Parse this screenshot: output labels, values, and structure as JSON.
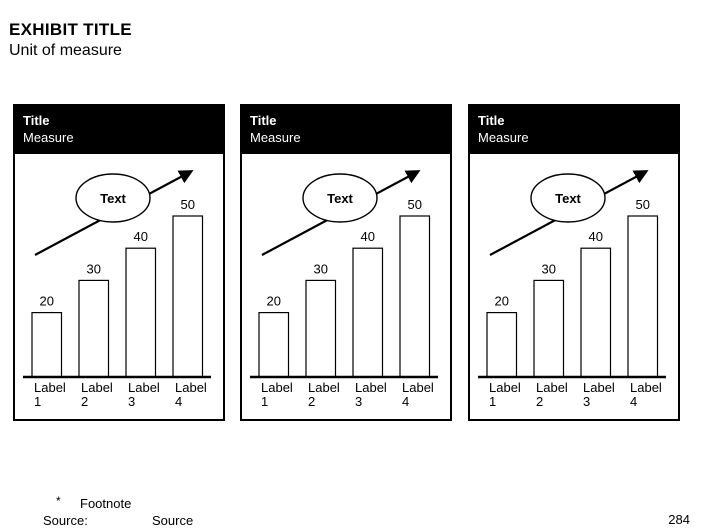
{
  "header": {
    "exhibit_title": "EXHIBIT TITLE",
    "unit_of_measure": "Unit of measure"
  },
  "panels": [
    {
      "title": "Title",
      "measure": "Measure"
    },
    {
      "title": "Title",
      "measure": "Measure"
    },
    {
      "title": "Title",
      "measure": "Measure"
    }
  ],
  "chart_data": [
    {
      "type": "bar",
      "title": "Title",
      "ylabel": "Measure",
      "categories": [
        "Label 1",
        "Label 2",
        "Label 3",
        "Label 4"
      ],
      "values": [
        20,
        30,
        40,
        50
      ],
      "data_labels": [
        "20",
        "30",
        "40",
        "50"
      ],
      "annotation": "Text",
      "has_trend_arrow": true,
      "ylim": [
        0,
        55
      ],
      "grid": false,
      "colors": {
        "bar_fill": "#ffffff",
        "bar_stroke": "#000000",
        "arrow": "#000000"
      }
    },
    {
      "type": "bar",
      "title": "Title",
      "ylabel": "Measure",
      "categories": [
        "Label 1",
        "Label 2",
        "Label 3",
        "Label 4"
      ],
      "values": [
        20,
        30,
        40,
        50
      ],
      "data_labels": [
        "20",
        "30",
        "40",
        "50"
      ],
      "annotation": "Text",
      "has_trend_arrow": true,
      "ylim": [
        0,
        55
      ],
      "grid": false,
      "colors": {
        "bar_fill": "#ffffff",
        "bar_stroke": "#000000",
        "arrow": "#000000"
      }
    },
    {
      "type": "bar",
      "title": "Title",
      "ylabel": "Measure",
      "categories": [
        "Label 1",
        "Label 2",
        "Label 3",
        "Label 4"
      ],
      "values": [
        20,
        30,
        40,
        50
      ],
      "data_labels": [
        "20",
        "30",
        "40",
        "50"
      ],
      "annotation": "Text",
      "has_trend_arrow": true,
      "ylim": [
        0,
        55
      ],
      "grid": false,
      "colors": {
        "bar_fill": "#ffffff",
        "bar_stroke": "#000000",
        "arrow": "#000000"
      }
    }
  ],
  "footer": {
    "footnote_marker": "*",
    "footnote": "Footnote",
    "source_label": "Source:",
    "source_value": "Source",
    "page_number": "284"
  },
  "colors": {
    "background": "#ffffff",
    "text": "#000000",
    "panel_header_bg": "#000000",
    "panel_header_text": "#ffffff"
  }
}
